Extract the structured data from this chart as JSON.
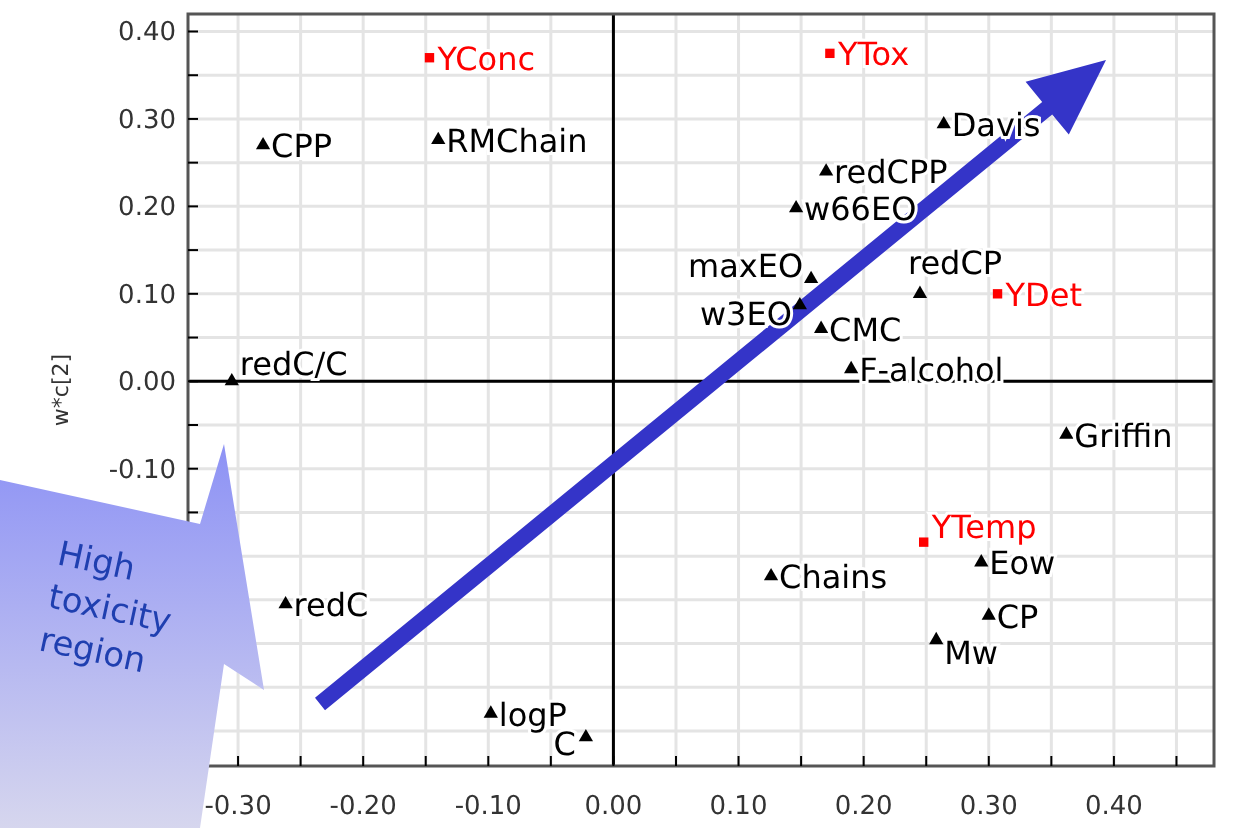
{
  "chart_data": {
    "type": "scatter",
    "ylabel": "w*c[2]",
    "xlim": [
      -0.34,
      0.48
    ],
    "ylim": [
      -0.44,
      0.42
    ],
    "xticks": [
      {
        "value": -0.3,
        "label": "-0.30"
      },
      {
        "value": -0.25,
        "label": null
      },
      {
        "value": -0.2,
        "label": "-0.20"
      },
      {
        "value": -0.15,
        "label": null
      },
      {
        "value": -0.1,
        "label": "-0.10"
      },
      {
        "value": -0.05,
        "label": null
      },
      {
        "value": 0,
        "label": "0.00"
      },
      {
        "value": 0.05,
        "label": null
      },
      {
        "value": 0.1,
        "label": "0.10"
      },
      {
        "value": 0.15,
        "label": null
      },
      {
        "value": 0.2,
        "label": "0.20"
      },
      {
        "value": 0.25,
        "label": null
      },
      {
        "value": 0.3,
        "label": "0.30"
      },
      {
        "value": 0.35,
        "label": null
      },
      {
        "value": 0.4,
        "label": "0.40"
      },
      {
        "value": 0.45,
        "label": null
      }
    ],
    "yticks": [
      {
        "value": 0.4,
        "label": "0.40"
      },
      {
        "value": 0.35,
        "label": null
      },
      {
        "value": 0.3,
        "label": "0.30"
      },
      {
        "value": 0.25,
        "label": null
      },
      {
        "value": 0.2,
        "label": "0.20"
      },
      {
        "value": 0.15,
        "label": null
      },
      {
        "value": 0.1,
        "label": "0.10"
      },
      {
        "value": 0.05,
        "label": null
      },
      {
        "value": 0,
        "label": "0.00"
      },
      {
        "value": -0.05,
        "label": null
      },
      {
        "value": -0.1,
        "label": "-0.10"
      },
      {
        "value": -0.15,
        "label": null
      },
      {
        "value": -0.2,
        "label": null
      },
      {
        "value": -0.25,
        "label": null
      },
      {
        "value": -0.3,
        "label": null
      },
      {
        "value": -0.35,
        "label": null
      },
      {
        "value": -0.4,
        "label": null
      }
    ],
    "grid": true,
    "marker": "triangle",
    "annotations": [
      "High toxicity region"
    ],
    "series": [
      {
        "color": "#000000",
        "x": [
          -0.28,
          -0.14,
          -0.305,
          0.264,
          0.17,
          0.146,
          0.158,
          0.245,
          0.149,
          0.166,
          0.19,
          0.362,
          0.294,
          0.126,
          0.3,
          0.258,
          -0.262,
          -0.098,
          -0.022
        ],
        "values": [
          0.27,
          0.276,
          0.0,
          0.294,
          0.24,
          0.198,
          0.117,
          0.1,
          0.087,
          0.06,
          0.014,
          -0.061,
          -0.207,
          -0.223,
          -0.268,
          -0.296,
          -0.255,
          -0.38,
          -0.407
        ],
        "value_labels": [
          "CPP",
          "RMChain",
          "redC/C",
          "Davis",
          "redCPP",
          "w66EO",
          "maxEO",
          "redCP",
          "w3EO",
          "CMC",
          "F-alcohol",
          "Griffin",
          "Eow",
          "Chains",
          "CP",
          "Mw",
          "redC",
          "logP",
          "C"
        ]
      },
      {
        "color": "#ff0000",
        "marker": "square",
        "x": [
          -0.147,
          0.173,
          0.307,
          0.248
        ],
        "values": [
          0.37,
          0.375,
          0.1,
          -0.184
        ],
        "value_labels": [
          "YConc",
          "YTox",
          "YDet",
          "YTemp"
        ]
      }
    ]
  }
}
